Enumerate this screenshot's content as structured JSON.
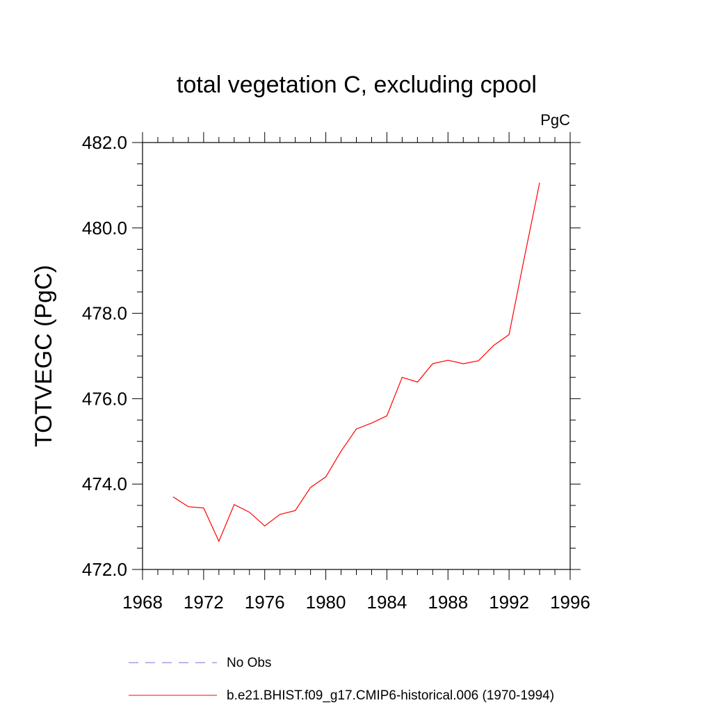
{
  "chart_data": {
    "type": "line",
    "title": "total vegetation C, excluding cpool",
    "units_label": "PgC",
    "ylabel": "TOTVEGC  (PgC)",
    "xlabel": "",
    "xlim": [
      1968,
      1996
    ],
    "ylim": [
      472.0,
      482.0
    ],
    "x_ticks": [
      "1968",
      "1972",
      "1976",
      "1980",
      "1984",
      "1988",
      "1992",
      "1996"
    ],
    "x_tick_values": [
      1968,
      1972,
      1976,
      1980,
      1984,
      1988,
      1992,
      1996
    ],
    "y_ticks": [
      "472.0",
      "474.0",
      "476.0",
      "478.0",
      "480.0",
      "482.0"
    ],
    "y_tick_values": [
      472.0,
      474.0,
      476.0,
      478.0,
      480.0,
      482.0
    ],
    "grid": false,
    "legend_position": "bottom",
    "series": [
      {
        "name": "b.e21.BHIST.f09_g17.CMIP6-historical.006 (1970-1994)",
        "color": "#ff0000",
        "dash": "solid",
        "x": [
          1970,
          1971,
          1972,
          1973,
          1974,
          1975,
          1976,
          1977,
          1978,
          1979,
          1980,
          1981,
          1982,
          1983,
          1984,
          1985,
          1986,
          1987,
          1988,
          1989,
          1990,
          1991,
          1992,
          1993,
          1994
        ],
        "y": [
          473.7,
          473.47,
          473.44,
          472.66,
          473.52,
          473.34,
          473.02,
          473.29,
          473.38,
          473.92,
          474.17,
          474.77,
          475.29,
          475.43,
          475.6,
          476.5,
          476.39,
          476.82,
          476.9,
          476.82,
          476.89,
          477.25,
          477.5,
          479.3,
          481.06
        ]
      }
    ],
    "legend": [
      {
        "label": "No Obs",
        "color": "#7b6bd8",
        "dash": "dashed"
      },
      {
        "label": "b.e21.BHIST.f09_g17.CMIP6-historical.006 (1970-1994)",
        "color": "#ff0000",
        "dash": "solid"
      }
    ]
  }
}
